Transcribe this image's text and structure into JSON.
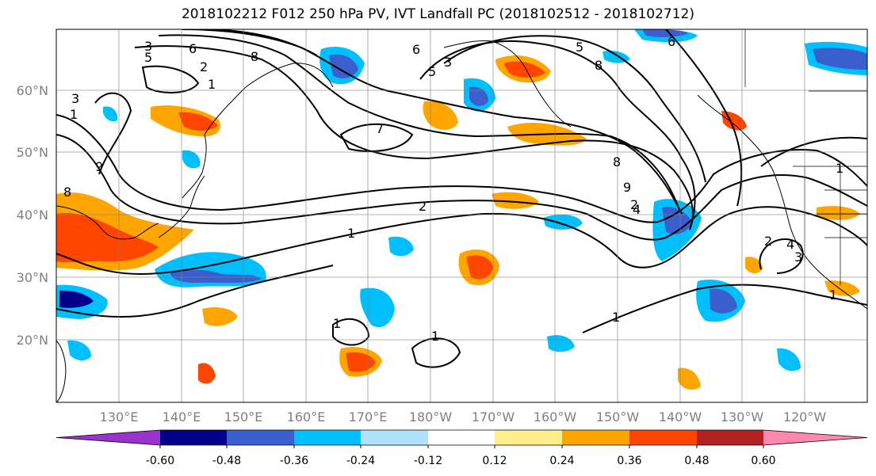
{
  "title": "2018102212 F012 250 hPa PV, IVT Landfall PC (2018102512 - 2018102712)",
  "lat_labels": [
    "60°N",
    "50°N",
    "40°N",
    "30°N",
    "20°N"
  ],
  "lon_labels": [
    "130°E",
    "140°E",
    "150°E",
    "160°E",
    "170°E",
    "180°W",
    "170°W",
    "160°W",
    "150°W",
    "140°W",
    "130°W",
    "120°W"
  ],
  "colorbar": {
    "colors": [
      "#9933cc",
      "#00008b",
      "#3a5fcd",
      "#00bfff",
      "#b0e2ff",
      "#ffffff",
      "#ffec8b",
      "#ffa500",
      "#ff4500",
      "#b22222",
      "#ff88b0"
    ],
    "tick_labels": [
      "-0.60",
      "-0.48",
      "-0.36",
      "-0.24",
      "-0.12",
      "0.12",
      "0.24",
      "0.36",
      "0.48",
      "0.60"
    ]
  },
  "contour_labels": [
    "3",
    "5",
    "6",
    "8",
    "2",
    "1",
    "3",
    "9",
    "7",
    "8",
    "2",
    "1",
    "1",
    "1",
    "1",
    "5",
    "6",
    "8",
    "9",
    "2",
    "4",
    "5",
    "2",
    "1",
    "3",
    "1",
    "8",
    "1",
    "6",
    "3",
    "4"
  ]
}
